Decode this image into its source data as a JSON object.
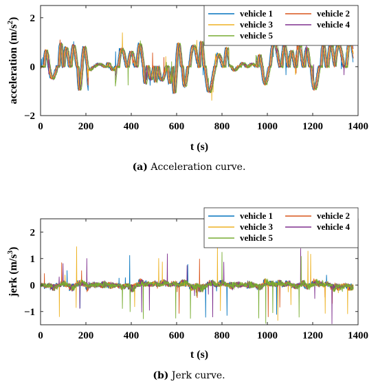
{
  "captions": [
    {
      "tag": "(a)",
      "text": " Acceleration curve."
    },
    {
      "tag": "(b)",
      "text": " Jerk curve."
    }
  ],
  "chart_data": [
    {
      "type": "line",
      "title": "",
      "xlabel": "t (s)",
      "ylabel_main": "acceleration (m/s",
      "ylabel_sup": "2",
      "ylabel_end": ")",
      "xlim": [
        0,
        1400
      ],
      "ylim": [
        -2,
        2.5
      ],
      "xticks": [
        0,
        200,
        400,
        600,
        800,
        1000,
        1200,
        1400
      ],
      "yticks": [
        -2,
        0,
        2
      ],
      "grid": false,
      "legend_position": "top-right",
      "seed": 11,
      "amplitude": 1.0,
      "spike": 0.5,
      "series": [
        {
          "name": "vehicle 1",
          "color": "#0072BD"
        },
        {
          "name": "vehicle 2",
          "color": "#D95319"
        },
        {
          "name": "vehicle 3",
          "color": "#EDB120"
        },
        {
          "name": "vehicle 4",
          "color": "#7E2F8E"
        },
        {
          "name": "vehicle 5",
          "color": "#77AC30"
        }
      ]
    },
    {
      "type": "line",
      "title": "",
      "xlabel": "t (s)",
      "ylabel_main": "jerk (m/s",
      "ylabel_sup": "3",
      "ylabel_end": ")",
      "xlim": [
        0,
        1400
      ],
      "ylim": [
        -1.5,
        2.5
      ],
      "xticks": [
        0,
        200,
        400,
        600,
        800,
        1000,
        1200,
        1400
      ],
      "yticks": [
        -1,
        0,
        1,
        2
      ],
      "grid": false,
      "legend_position": "top-right",
      "seed": 47,
      "amplitude": 0.12,
      "spike": 1.0,
      "series": [
        {
          "name": "vehicle 1",
          "color": "#0072BD"
        },
        {
          "name": "vehicle 2",
          "color": "#D95319"
        },
        {
          "name": "vehicle 3",
          "color": "#EDB120"
        },
        {
          "name": "vehicle 4",
          "color": "#7E2F8E"
        },
        {
          "name": "vehicle 5",
          "color": "#77AC30"
        }
      ]
    }
  ]
}
